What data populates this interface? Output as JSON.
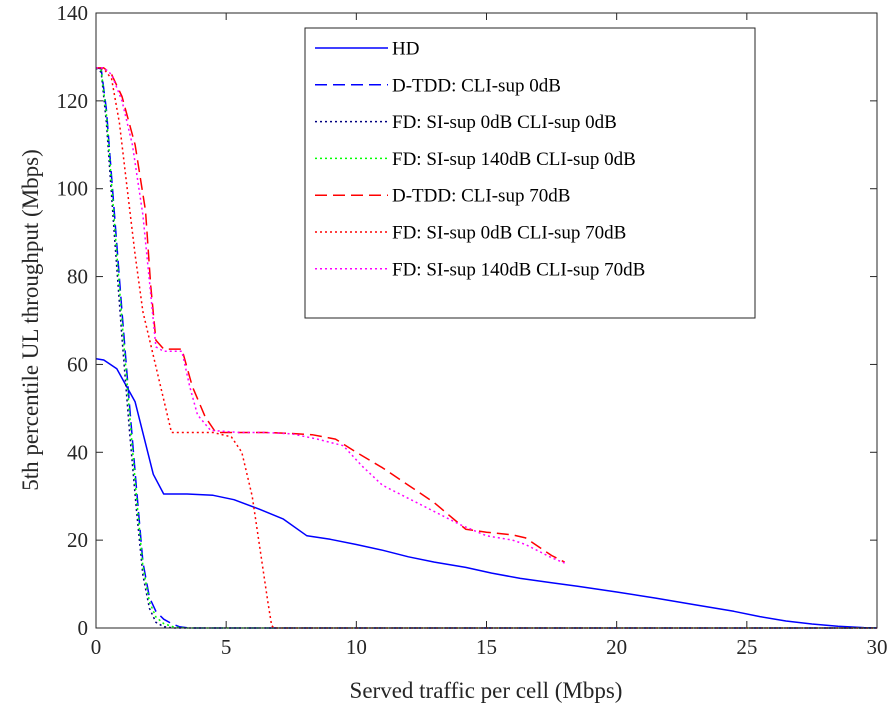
{
  "chart_data": {
    "type": "line",
    "title": "",
    "xlabel": "Served traffic per cell (Mbps)",
    "ylabel": "5th percentile UL throughput (Mbps)",
    "xlim": [
      0,
      30
    ],
    "ylim": [
      0,
      140
    ],
    "xticks": [
      0,
      5,
      10,
      15,
      20,
      25,
      30
    ],
    "yticks": [
      0,
      20,
      40,
      60,
      80,
      100,
      120,
      140
    ],
    "grid": false,
    "legend_position": "top-right",
    "series": [
      {
        "name": "HD",
        "color": "#0000ff",
        "dash": "solid",
        "points": [
          [
            0,
            61.3
          ],
          [
            0.3,
            61
          ],
          [
            0.8,
            59
          ],
          [
            1.5,
            51.5
          ],
          [
            2.2,
            35
          ],
          [
            2.6,
            30.5
          ],
          [
            3.5,
            30.5
          ],
          [
            4.5,
            30.2
          ],
          [
            5.3,
            29.2
          ],
          [
            6.3,
            27
          ],
          [
            7.2,
            24.8
          ],
          [
            8.1,
            21
          ],
          [
            9,
            20.2
          ],
          [
            10,
            19
          ],
          [
            11,
            17.7
          ],
          [
            12,
            16.2
          ],
          [
            13,
            15
          ],
          [
            14.2,
            13.8
          ],
          [
            15.2,
            12.5
          ],
          [
            16.3,
            11.3
          ],
          [
            17.5,
            10.3
          ],
          [
            18.5,
            9.5
          ],
          [
            20,
            8.2
          ],
          [
            21.5,
            6.8
          ],
          [
            23,
            5.3
          ],
          [
            24.5,
            3.8
          ],
          [
            25.5,
            2.6
          ],
          [
            26.5,
            1.6
          ],
          [
            27.5,
            0.9
          ],
          [
            28.5,
            0.4
          ],
          [
            29.5,
            0.1
          ],
          [
            30,
            0
          ]
        ]
      },
      {
        "name": "D-TDD: CLI-sup 0dB",
        "color": "#0000ff",
        "dash": "dashed",
        "points": [
          [
            0,
            127.5
          ],
          [
            0.2,
            127.3
          ],
          [
            0.4,
            118
          ],
          [
            0.7,
            95
          ],
          [
            1.0,
            72
          ],
          [
            1.3,
            50
          ],
          [
            1.55,
            32
          ],
          [
            1.8,
            15
          ],
          [
            2.05,
            7
          ],
          [
            2.3,
            3.8
          ],
          [
            2.6,
            2
          ],
          [
            2.9,
            1
          ],
          [
            3.2,
            0.3
          ],
          [
            3.6,
            0
          ],
          [
            30,
            0
          ]
        ]
      },
      {
        "name": "FD: SI-sup 0dB CLI-sup 0dB",
        "color": "#000080",
        "dash": "dotted",
        "points": [
          [
            0,
            127.5
          ],
          [
            0.2,
            126.5
          ],
          [
            0.4,
            115
          ],
          [
            0.7,
            90
          ],
          [
            1.0,
            66
          ],
          [
            1.3,
            44
          ],
          [
            1.55,
            27
          ],
          [
            1.8,
            12
          ],
          [
            2.05,
            4.5
          ],
          [
            2.3,
            1.3
          ],
          [
            2.6,
            0.3
          ],
          [
            3.0,
            0
          ],
          [
            30,
            0
          ]
        ]
      },
      {
        "name": "FD: SI-sup 140dB CLI-sup 0dB",
        "color": "#00ff00",
        "dash": "dotted",
        "points": [
          [
            0,
            127.5
          ],
          [
            0.2,
            127
          ],
          [
            0.4,
            117
          ],
          [
            0.7,
            93
          ],
          [
            1.0,
            70
          ],
          [
            1.3,
            48
          ],
          [
            1.55,
            30
          ],
          [
            1.8,
            14
          ],
          [
            2.05,
            6
          ],
          [
            2.3,
            2.5
          ],
          [
            2.6,
            1
          ],
          [
            3.0,
            0.2
          ],
          [
            3.5,
            0
          ],
          [
            30,
            0
          ]
        ]
      },
      {
        "name": "D-TDD: CLI-sup 70dB",
        "color": "#ff0000",
        "dash": "dashed",
        "points": [
          [
            0,
            127.5
          ],
          [
            0.3,
            127.5
          ],
          [
            0.6,
            126
          ],
          [
            1.0,
            121
          ],
          [
            1.5,
            110
          ],
          [
            1.9,
            95
          ],
          [
            2.1,
            78
          ],
          [
            2.3,
            65.5
          ],
          [
            2.6,
            63.5
          ],
          [
            3.3,
            63.5
          ],
          [
            3.7,
            55
          ],
          [
            4.2,
            48
          ],
          [
            4.6,
            44.5
          ],
          [
            5.5,
            44.5
          ],
          [
            6.5,
            44.5
          ],
          [
            7.5,
            44.3
          ],
          [
            8.3,
            44
          ],
          [
            9.2,
            43
          ],
          [
            10,
            40
          ],
          [
            11,
            36.5
          ],
          [
            12,
            32.5
          ],
          [
            13,
            28.5
          ],
          [
            14.2,
            22.5
          ],
          [
            15,
            21.8
          ],
          [
            16,
            21.2
          ],
          [
            16.5,
            20.5
          ],
          [
            17,
            18.5
          ],
          [
            17.5,
            16.5
          ],
          [
            18,
            15
          ]
        ]
      },
      {
        "name": "FD: SI-sup 0dB CLI-sup 70dB",
        "color": "#ff0000",
        "dash": "dotted",
        "points": [
          [
            0,
            127.5
          ],
          [
            0.3,
            127.3
          ],
          [
            0.6,
            125
          ],
          [
            0.9,
            115
          ],
          [
            1.2,
            100
          ],
          [
            1.5,
            85
          ],
          [
            1.8,
            72
          ],
          [
            2.2,
            62
          ],
          [
            2.6,
            52
          ],
          [
            2.9,
            44.5
          ],
          [
            3.5,
            44.5
          ],
          [
            4.5,
            44.5
          ],
          [
            5.2,
            43.5
          ],
          [
            5.6,
            40
          ],
          [
            6.0,
            30
          ],
          [
            6.3,
            18
          ],
          [
            6.6,
            6
          ],
          [
            6.75,
            0.5
          ],
          [
            6.85,
            0
          ],
          [
            30,
            0
          ]
        ]
      },
      {
        "name": "FD: SI-sup 140dB CLI-sup 70dB",
        "color": "#ff00ff",
        "dash": "dotted",
        "points": [
          [
            0,
            127.5
          ],
          [
            0.3,
            127.5
          ],
          [
            0.6,
            126
          ],
          [
            1.0,
            120
          ],
          [
            1.4,
            110
          ],
          [
            1.8,
            94
          ],
          [
            2.1,
            76
          ],
          [
            2.3,
            64
          ],
          [
            2.6,
            63
          ],
          [
            3.3,
            63
          ],
          [
            3.6,
            55
          ],
          [
            3.9,
            48.5
          ],
          [
            4.4,
            45
          ],
          [
            5.5,
            44.5
          ],
          [
            6.5,
            44.5
          ],
          [
            7.5,
            44.2
          ],
          [
            8.5,
            43
          ],
          [
            9.5,
            41.5
          ],
          [
            10.2,
            37
          ],
          [
            11,
            32.5
          ],
          [
            12,
            29.5
          ],
          [
            13,
            26.5
          ],
          [
            14,
            23.5
          ],
          [
            15,
            21
          ],
          [
            16,
            20
          ],
          [
            16.5,
            19
          ],
          [
            17,
            17.5
          ],
          [
            17.5,
            16
          ],
          [
            18,
            14.8
          ]
        ]
      }
    ]
  }
}
